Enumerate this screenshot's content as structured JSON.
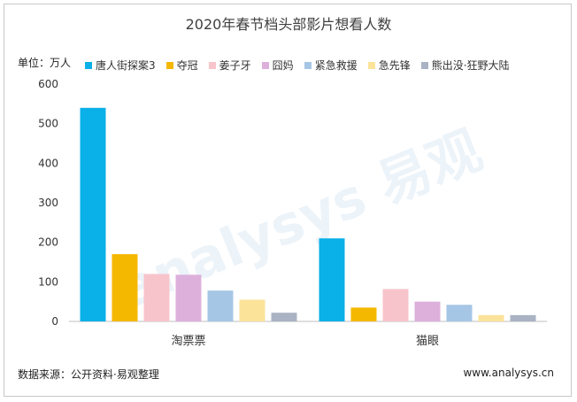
{
  "title": "2020年春节档头部影片想看人数",
  "unit_label": "单位：万人",
  "source": "数据来源：公开资料·易观整理",
  "site": "www.analysys.cn",
  "watermark": "analysys 易观",
  "chart_data": {
    "type": "bar",
    "categories": [
      "淘票票",
      "猫眼"
    ],
    "ylim": [
      0,
      600
    ],
    "yticks": [
      0,
      100,
      200,
      300,
      400,
      500,
      600
    ],
    "series": [
      {
        "name": "唐人街探案3",
        "color": "#0ab0e8",
        "values": [
          540,
          210
        ]
      },
      {
        "name": "夺冠",
        "color": "#f5b800",
        "values": [
          170,
          35
        ]
      },
      {
        "name": "姜子牙",
        "color": "#f8c4cb",
        "values": [
          120,
          82
        ]
      },
      {
        "name": "囧妈",
        "color": "#ddb0dc",
        "values": [
          118,
          50
        ]
      },
      {
        "name": "紧急救援",
        "color": "#a6c6e6",
        "values": [
          78,
          42
        ]
      },
      {
        "name": "急先锋",
        "color": "#fbe39a",
        "values": [
          55,
          16
        ]
      },
      {
        "name": "熊出没·狂野大陆",
        "color": "#aab3c3",
        "values": [
          22,
          16
        ]
      }
    ],
    "legend_position": "top",
    "grid": false
  }
}
